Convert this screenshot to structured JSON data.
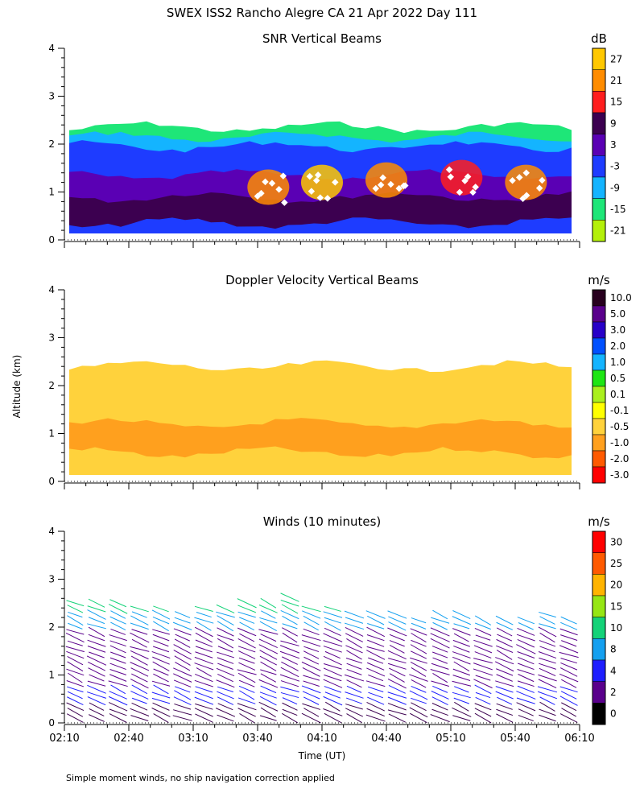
{
  "figure": {
    "title": "SWEX ISS2 Rancho Alegre CA  21 Apr 2022 Day 111",
    "ylabel": "Altitude (km)",
    "xlabel": "Time (UT)",
    "footnote": "Simple moment winds, no ship navigation correction applied"
  },
  "chart_data": [
    {
      "type": "heatmap",
      "title": "SNR Vertical Beams",
      "unit": "dB",
      "ylim": [
        0,
        4
      ],
      "yticks": [
        "0",
        "1",
        "2",
        "3",
        "4"
      ],
      "xlim_minutes": [
        0,
        240
      ],
      "colorbar": {
        "labels": [
          "27",
          "21",
          "15",
          "9",
          "3",
          "-3",
          "-9",
          "-15",
          "-21"
        ],
        "colors": [
          "#ffc800",
          "#ff8c00",
          "#ff1e1e",
          "#3c0050",
          "#5a00b4",
          "#1e3cff",
          "#14b4ff",
          "#1ee678",
          "#b4f00a"
        ]
      },
      "layers": [
        {
          "top": 2.35,
          "color": "#1ee678"
        },
        {
          "top": 2.15,
          "color": "#14b4ff"
        },
        {
          "top": 1.95,
          "color": "#1e3cff"
        },
        {
          "top": 1.35,
          "color": "#5a00b4"
        },
        {
          "top": 0.9,
          "color": "#3c0050"
        },
        {
          "top": 0.35,
          "color": "#1e3cff"
        }
      ],
      "echo_patches": [
        {
          "t": 95,
          "h": 1.1,
          "color": "#ff8c00"
        },
        {
          "t": 120,
          "h": 1.2,
          "color": "#ffc800"
        },
        {
          "t": 150,
          "h": 1.25,
          "color": "#ff8c00"
        },
        {
          "t": 185,
          "h": 1.3,
          "color": "#ff1e1e"
        },
        {
          "t": 215,
          "h": 1.2,
          "color": "#ff8c00"
        }
      ]
    },
    {
      "type": "heatmap",
      "title": "Doppler Velocity Vertical Beams",
      "unit": "m/s",
      "ylim": [
        0,
        4
      ],
      "yticks": [
        "0",
        "1",
        "2",
        "3",
        "4"
      ],
      "xlim_minutes": [
        0,
        240
      ],
      "colorbar": {
        "labels": [
          "10.0",
          "5.0",
          "3.0",
          "2.0",
          "1.0",
          "0.5",
          "0.1",
          "-0.1",
          "-0.5",
          "-1.0",
          "-2.0",
          "-3.0"
        ],
        "colors": [
          "#28001e",
          "#5a008c",
          "#2800c8",
          "#0050ff",
          "#14b4ff",
          "#1ee614",
          "#aaf01e",
          "#ffff00",
          "#ffd23c",
          "#ffa01e",
          "#ff5a00",
          "#ff0000"
        ]
      },
      "layers": [
        {
          "top": 2.4,
          "color": "#ffd23c"
        },
        {
          "top": 1.2,
          "color": "#ffa01e"
        },
        {
          "top": 0.6,
          "color": "#ffd23c"
        }
      ]
    },
    {
      "type": "barbs",
      "title": "Winds (10 minutes)",
      "unit": "m/s",
      "ylim": [
        0,
        4
      ],
      "yticks": [
        "0",
        "1",
        "2",
        "3",
        "4"
      ],
      "xlim_minutes": [
        0,
        240
      ],
      "xticks": [
        "02:10",
        "02:40",
        "03:10",
        "03:40",
        "04:10",
        "04:40",
        "05:10",
        "05:40",
        "06:10"
      ],
      "colorbar": {
        "labels": [
          "30",
          "25",
          "20",
          "15",
          "10",
          "8",
          "4",
          "2",
          "0"
        ],
        "colors": [
          "#ff0000",
          "#ff5a00",
          "#ffb400",
          "#96e614",
          "#14d278",
          "#14a0f0",
          "#1e1eff",
          "#5a008c",
          "#000000"
        ]
      },
      "profile_times_minutes": [
        5,
        15,
        25,
        35,
        45,
        55,
        65,
        75,
        85,
        95,
        105,
        115,
        125,
        135,
        145,
        155,
        165,
        175,
        185,
        195,
        205,
        215,
        225,
        235
      ],
      "profile_tops_km": [
        2.6,
        2.6,
        2.55,
        2.5,
        2.45,
        2.35,
        2.4,
        2.5,
        2.55,
        2.6,
        2.65,
        2.5,
        2.4,
        2.35,
        2.3,
        2.3,
        2.25,
        2.3,
        2.3,
        2.2,
        2.2,
        2.25,
        2.3,
        2.2
      ]
    }
  ]
}
